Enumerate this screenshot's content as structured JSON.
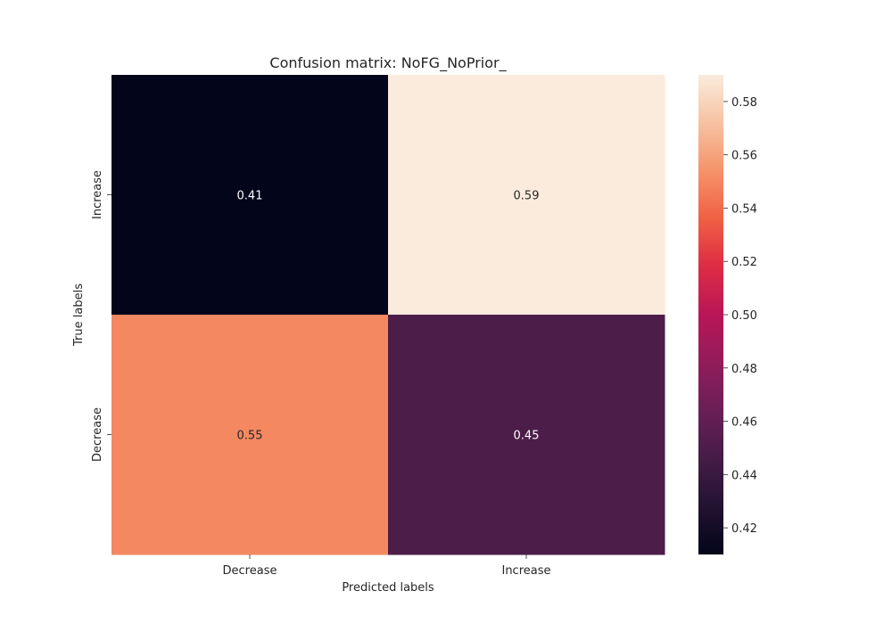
{
  "chart_data": {
    "type": "heatmap",
    "title": "Confusion matrix: NoFG_NoPrior_",
    "xlabel": "Predicted labels",
    "ylabel": "True labels",
    "x_categories": [
      "Decrease",
      "Increase"
    ],
    "y_categories": [
      "Increase",
      "Decrease"
    ],
    "values": [
      [
        0.41,
        0.59
      ],
      [
        0.55,
        0.45
      ]
    ],
    "annotations": [
      [
        "0.41",
        "0.59"
      ],
      [
        "0.55",
        "0.45"
      ]
    ],
    "colormap": "rocket",
    "colorbar": {
      "range": [
        0.41,
        0.59
      ],
      "ticks": [
        0.42,
        0.44,
        0.46,
        0.48,
        0.5,
        0.52,
        0.54,
        0.56,
        0.58
      ],
      "tick_labels": [
        "0.42",
        "0.44",
        "0.46",
        "0.48",
        "0.50",
        "0.52",
        "0.54",
        "0.56",
        "0.58"
      ]
    },
    "grid": false,
    "colors": {
      "low": "#03051a",
      "high": "#faebdd",
      "text_dark": "#262626",
      "text_light": "#ffffff"
    }
  }
}
